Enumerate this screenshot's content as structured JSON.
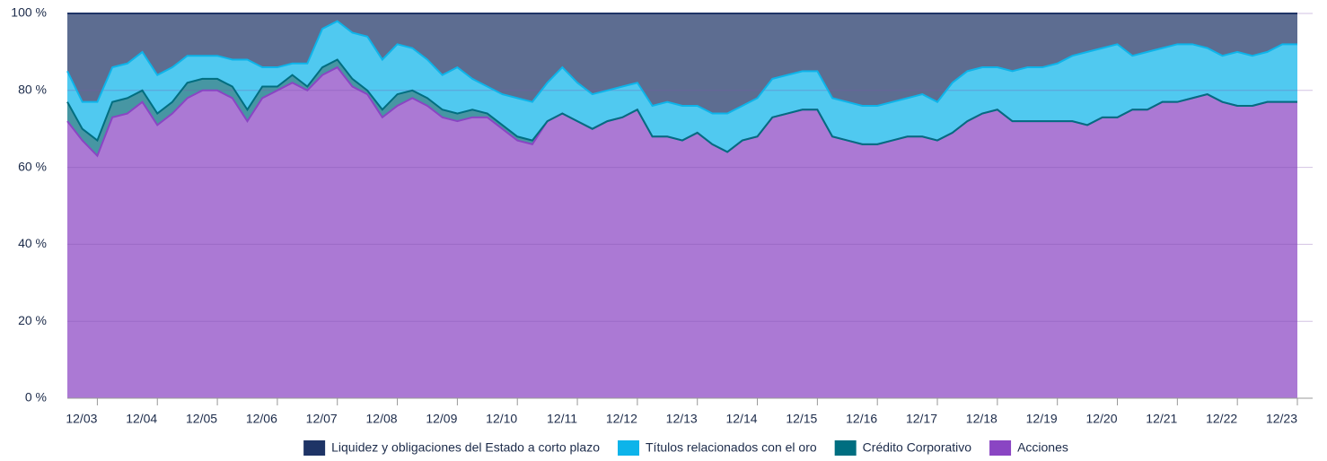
{
  "chart_data": {
    "type": "stacked-area",
    "categories": [
      null,
      null,
      "12/03",
      null,
      null,
      null,
      "12/04",
      null,
      null,
      null,
      "12/05",
      null,
      null,
      null,
      "12/06",
      null,
      null,
      null,
      "12/07",
      null,
      null,
      null,
      "12/08",
      null,
      null,
      null,
      "12/09",
      null,
      null,
      null,
      "12/10",
      null,
      null,
      null,
      "12/11",
      null,
      null,
      null,
      "12/12",
      null,
      null,
      null,
      "12/13",
      null,
      null,
      null,
      "12/14",
      null,
      null,
      null,
      "12/15",
      null,
      null,
      null,
      "12/16",
      null,
      null,
      null,
      "12/17",
      null,
      null,
      null,
      "12/18",
      null,
      null,
      null,
      "12/19",
      null,
      null,
      null,
      "12/20",
      null,
      null,
      null,
      "12/21",
      null,
      null,
      null,
      "12/22",
      null,
      null,
      null,
      "12/23"
    ],
    "series": [
      {
        "name": "Liquidez y obligaciones del Estado a corto plazo",
        "color": "#1e3466",
        "values": [
          15,
          23,
          23,
          14,
          13,
          10,
          16,
          14,
          11,
          11,
          11,
          12,
          12,
          14,
          14,
          13,
          13,
          4,
          2,
          5,
          6,
          12,
          8,
          9,
          12,
          16,
          14,
          17,
          19,
          21,
          22,
          23,
          18,
          14,
          18,
          21,
          20,
          19,
          18,
          24,
          23,
          24,
          24,
          26,
          26,
          24,
          22,
          17,
          16,
          15,
          15,
          22,
          23,
          24,
          24,
          23,
          22,
          21,
          23,
          18,
          15,
          14,
          14,
          15,
          14,
          14,
          13,
          11,
          10,
          9,
          8,
          11,
          10,
          9,
          8,
          8,
          9,
          11,
          10,
          11,
          10,
          8,
          8
        ]
      },
      {
        "name": "Títulos relacionados con el oro",
        "color": "#0db4ea",
        "values": [
          8,
          7,
          10,
          9,
          9,
          10,
          10,
          9,
          7,
          6,
          6,
          7,
          13,
          5,
          5,
          3,
          6,
          10,
          10,
          12,
          14,
          13,
          13,
          11,
          10,
          9,
          12,
          8,
          7,
          8,
          10,
          10,
          10,
          12,
          10,
          9,
          8,
          8,
          7,
          8,
          9,
          9,
          7,
          8,
          10,
          9,
          10,
          10,
          10,
          10,
          10,
          10,
          10,
          10,
          10,
          10,
          10,
          11,
          10,
          13,
          13,
          12,
          11,
          13,
          14,
          14,
          15,
          17,
          19,
          18,
          19,
          14,
          15,
          14,
          15,
          14,
          12,
          12,
          14,
          13,
          13,
          15,
          15
        ]
      },
      {
        "name": "Crédito Corporativo",
        "color": "#006e80",
        "values": [
          5,
          3,
          4,
          4,
          4,
          3,
          3,
          3,
          4,
          3,
          3,
          3,
          3,
          3,
          1,
          2,
          1,
          2,
          2,
          2,
          1,
          2,
          3,
          2,
          2,
          2,
          2,
          2,
          1,
          1,
          1,
          1,
          0,
          0,
          0,
          0,
          0,
          0,
          0,
          0,
          0,
          0,
          0,
          0,
          0,
          0,
          0,
          0,
          0,
          0,
          0,
          0,
          0,
          0,
          0,
          0,
          0,
          0,
          0,
          0,
          0,
          0,
          0,
          0,
          0,
          0,
          0,
          0,
          0,
          0,
          0,
          0,
          0,
          0,
          0,
          0,
          0,
          0,
          0,
          0,
          0,
          0,
          0
        ]
      },
      {
        "name": "Acciones",
        "color": "#8a45c3",
        "values": [
          72,
          67,
          63,
          73,
          74,
          77,
          71,
          74,
          78,
          80,
          80,
          78,
          72,
          78,
          80,
          82,
          80,
          84,
          86,
          81,
          79,
          73,
          76,
          78,
          76,
          73,
          72,
          73,
          73,
          70,
          67,
          66,
          72,
          74,
          72,
          70,
          72,
          73,
          75,
          68,
          68,
          67,
          69,
          66,
          64,
          67,
          68,
          73,
          74,
          75,
          75,
          68,
          67,
          66,
          66,
          67,
          68,
          68,
          67,
          69,
          72,
          74,
          75,
          72,
          72,
          72,
          72,
          72,
          71,
          73,
          73,
          75,
          75,
          77,
          77,
          78,
          79,
          77,
          76,
          76,
          77,
          77,
          77
        ]
      }
    ],
    "ylim": [
      0,
      100
    ],
    "yticks": [
      {
        "value": 0,
        "label": "0 %"
      },
      {
        "value": 20,
        "label": "20 %"
      },
      {
        "value": 40,
        "label": "40 %"
      },
      {
        "value": 60,
        "label": "60 %"
      },
      {
        "value": 80,
        "label": "80 %"
      },
      {
        "value": 100,
        "label": "100 %"
      }
    ],
    "grid": true,
    "legend": "bottom"
  }
}
